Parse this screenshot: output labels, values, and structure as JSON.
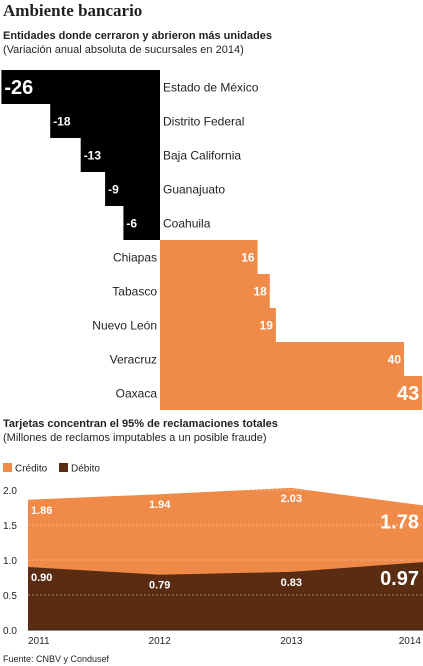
{
  "title": "Ambiente bancario",
  "source": "Fuente: CNBV y Condusef",
  "colors": {
    "black": "#000000",
    "orange": "#f08a48",
    "brown": "#5a2c12",
    "text": "#231f20"
  },
  "chart_data": [
    {
      "type": "bar",
      "title": "Entidades donde cerraron y abrieron más unidades",
      "subtitle": "(Variación anual absoluta de sucursales en 2014)",
      "categories": [
        "Estado de México",
        "Distrito Federal",
        "Baja California",
        "Guanajuato",
        "Coahuila",
        "Chiapas",
        "Tabasco",
        "Nuevo León",
        "Veracruz",
        "Oaxaca"
      ],
      "values": [
        -26,
        -18,
        -13,
        -9,
        -6,
        16,
        18,
        19,
        40,
        43
      ],
      "value_labels": [
        "-26",
        "-18",
        "-13",
        "-9",
        "-6",
        "16",
        "18",
        "19",
        "40",
        "43"
      ],
      "orientation": "horizontal"
    },
    {
      "type": "area",
      "title": "Tarjetas concentran el 95% de reclamaciones totales",
      "subtitle": "(Millones de reclamos imputables a un posible fraude)",
      "x": [
        "2011",
        "2012",
        "2013",
        "2014"
      ],
      "series": [
        {
          "name": "Crédito",
          "values": [
            1.86,
            1.94,
            2.03,
            1.78
          ],
          "labels": [
            "1.86",
            "1.94",
            "2.03",
            "1.78"
          ],
          "color": "#f08a48"
        },
        {
          "name": "Débito",
          "values": [
            0.9,
            0.79,
            0.83,
            0.97
          ],
          "labels": [
            "0.90",
            "0.79",
            "0.83",
            "0.97"
          ],
          "color": "#5a2c12"
        }
      ],
      "ylim": [
        0,
        2.0
      ],
      "yticks": [
        "0.0",
        "0.5",
        "1.0",
        "1.5",
        "2.0"
      ],
      "grid": true,
      "legend": "top-left"
    }
  ]
}
